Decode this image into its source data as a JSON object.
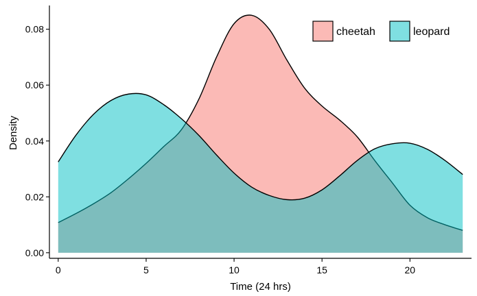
{
  "chart_data": {
    "type": "area",
    "title": "",
    "xlabel": "Time (24 hrs)",
    "ylabel": "Density",
    "xlim": [
      -0.5,
      23.5
    ],
    "ylim": [
      -0.002,
      0.0885
    ],
    "x_ticks": [
      0,
      5,
      10,
      15,
      20
    ],
    "x_tick_labels": [
      "0",
      "5",
      "10",
      "15",
      "20"
    ],
    "y_ticks": [
      0,
      0.02,
      0.04,
      0.06,
      0.08
    ],
    "y_tick_labels": [
      "0.00",
      "0.02",
      "0.04",
      "0.06",
      "0.08"
    ],
    "grid": false,
    "legend_position": "top-right",
    "x": [
      0,
      1,
      2,
      3,
      4,
      5,
      6,
      7,
      8,
      9,
      10,
      11,
      12,
      13,
      14,
      15,
      16,
      17,
      18,
      19,
      20,
      21,
      22,
      23
    ],
    "series": [
      {
        "name": "cheetah",
        "color": "#F8766D",
        "values": [
          0.0108,
          0.014,
          0.0175,
          0.0215,
          0.0265,
          0.032,
          0.038,
          0.044,
          0.055,
          0.07,
          0.082,
          0.085,
          0.08,
          0.069,
          0.059,
          0.0525,
          0.0475,
          0.0415,
          0.033,
          0.025,
          0.017,
          0.0125,
          0.01,
          0.008
        ]
      },
      {
        "name": "leopard",
        "color": "#00BFC4",
        "values": [
          0.0325,
          0.042,
          0.0495,
          0.0545,
          0.0568,
          0.0565,
          0.053,
          0.048,
          0.042,
          0.035,
          0.0285,
          0.0235,
          0.0205,
          0.019,
          0.0195,
          0.0225,
          0.0275,
          0.033,
          0.0372,
          0.039,
          0.0392,
          0.037,
          0.033,
          0.028
        ]
      }
    ]
  }
}
